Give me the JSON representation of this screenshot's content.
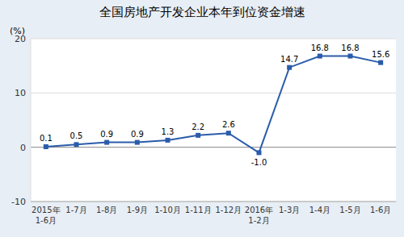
{
  "chart_data": {
    "type": "line",
    "title": "全国房地产开发企业本年到位资金增速",
    "ylabel": "(%)",
    "categories": [
      "2015年\n1-6月",
      "1-7月",
      "1-8月",
      "1-9月",
      "1-10月",
      "1-11月",
      "1-12月",
      "2016年\n1-2月",
      "1-3月",
      "1-4月",
      "1-5月",
      "1-6月"
    ],
    "values": [
      0.1,
      0.5,
      0.9,
      0.9,
      1.3,
      2.2,
      2.6,
      -1.0,
      14.7,
      16.8,
      16.8,
      15.6
    ],
    "value_labels": [
      "0.1",
      "0.5",
      "0.9",
      "0.9",
      "1.3",
      "2.2",
      "2.6",
      "-1.0",
      "14.7",
      "16.8",
      "16.8",
      "15.6"
    ],
    "data_labels": true,
    "color": "#2a5caa",
    "marker": "square",
    "ylim": [
      -10,
      20
    ],
    "yticks": [
      -10,
      0,
      10,
      20
    ],
    "grid": true
  }
}
